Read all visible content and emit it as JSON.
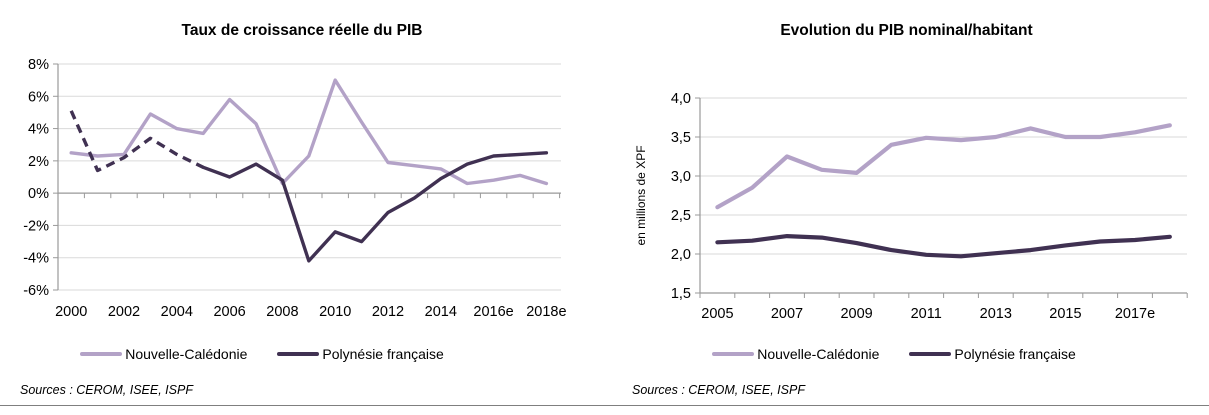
{
  "chart_data": [
    {
      "type": "line",
      "title": "Taux de croissance réelle du PIB",
      "xlabel": "",
      "ylabel": "",
      "y_unit": "%",
      "ylim": [
        -6,
        8
      ],
      "grid": true,
      "legend_position": "bottom",
      "x_categories": [
        "2000",
        "2001",
        "2002",
        "2003",
        "2004",
        "2005",
        "2006",
        "2007",
        "2008",
        "2009",
        "2010",
        "2011",
        "2012",
        "2013",
        "2014",
        "2015",
        "2016e",
        "2017e",
        "2018e"
      ],
      "x_tick_labels_shown": [
        "2000",
        "2002",
        "2004",
        "2006",
        "2008",
        "2010",
        "2012",
        "2014",
        "2016e",
        "2018e"
      ],
      "y_ticks": [
        "8%",
        "6%",
        "4%",
        "2%",
        "0%",
        "-2%",
        "-4%",
        "-6%"
      ],
      "series": [
        {
          "name": "Nouvelle-Calédonie",
          "color": "#B3A2C7",
          "style": "solid",
          "values": [
            2.5,
            2.3,
            2.4,
            4.9,
            4.0,
            3.7,
            5.8,
            4.3,
            0.6,
            2.3,
            7.0,
            4.4,
            1.9,
            1.7,
            1.5,
            0.6,
            0.8,
            1.1,
            0.6
          ]
        },
        {
          "name": "Polynésie française",
          "color": "#403152",
          "style": "dashed 2000-2005 then solid",
          "dashed_until_index": 5,
          "values": [
            5.1,
            1.4,
            2.2,
            3.4,
            2.4,
            1.6,
            1.0,
            1.8,
            0.8,
            -4.2,
            -2.4,
            -3.0,
            -1.2,
            -0.3,
            0.9,
            1.8,
            2.3,
            2.4,
            2.5
          ]
        }
      ],
      "source_note": "Sources : CEROM, ISEE, ISPF"
    },
    {
      "type": "line",
      "title": "Evolution du PIB nominal/habitant",
      "xlabel": "",
      "ylabel": "en millions de XPF",
      "ylim": [
        1.5,
        4.0
      ],
      "grid": true,
      "legend_position": "bottom",
      "x_categories": [
        "2005",
        "2006",
        "2007",
        "2008",
        "2009",
        "2010",
        "2011",
        "2012",
        "2013",
        "2014",
        "2015",
        "2016",
        "2017e",
        "2018e"
      ],
      "x_tick_labels_shown": [
        "2005",
        "2007",
        "2009",
        "2011",
        "2013",
        "2015",
        "2017e"
      ],
      "y_ticks": [
        "4,0",
        "3,5",
        "3,0",
        "2,5",
        "2,0",
        "1,5"
      ],
      "series": [
        {
          "name": "Nouvelle-Calédonie",
          "color": "#B3A2C7",
          "style": "solid",
          "values": [
            2.6,
            2.85,
            3.25,
            3.08,
            3.04,
            3.4,
            3.49,
            3.46,
            3.5,
            3.61,
            3.5,
            3.5,
            3.56,
            3.65
          ]
        },
        {
          "name": "Polynésie française",
          "color": "#403152",
          "style": "solid",
          "values": [
            2.15,
            2.17,
            2.23,
            2.21,
            2.14,
            2.05,
            1.99,
            1.97,
            2.01,
            2.05,
            2.11,
            2.16,
            2.18,
            2.22
          ]
        }
      ],
      "source_note": "Sources : CEROM, ISEE, ISPF"
    }
  ],
  "colors": {
    "series_light": "#B3A2C7",
    "series_dark": "#403152",
    "gridline": "#DADADA",
    "axis": "#999999",
    "text": "#000000"
  }
}
